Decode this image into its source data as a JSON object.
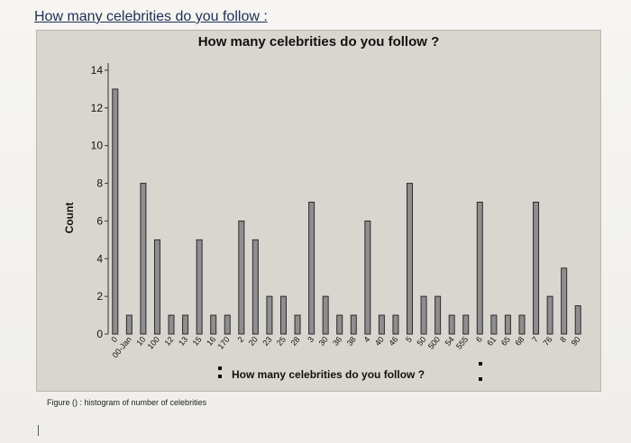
{
  "document": {
    "heading": "How many celebrities do you follow :",
    "caption": "Figure () : histogram of number of celebrities"
  },
  "colors": {
    "frame_bg": "#d9d6cf",
    "bar_fill": "#8e8e8e",
    "bar_stroke": "#2b2b2b",
    "axis": "#333333"
  },
  "chart_data": {
    "type": "bar",
    "title": "How many celebrities do you follow ?",
    "xlabel": "How many celebrities do you follow ?",
    "ylabel": "Count",
    "ylim": [
      0,
      14
    ],
    "yticks": [
      0,
      2,
      4,
      6,
      8,
      10,
      12,
      14
    ],
    "grid": false,
    "categories": [
      "0",
      "00-Jan",
      "10",
      "100",
      "12",
      "13",
      "15",
      "16",
      "170",
      "2",
      "20",
      "23",
      "25",
      "28",
      "3",
      "30",
      "36",
      "38",
      "4",
      "40",
      "46",
      "5",
      "50",
      "500",
      "54",
      "555",
      "6",
      "61",
      "65",
      "68",
      "7",
      "76",
      "8",
      "90"
    ],
    "values": [
      13,
      1,
      8,
      5,
      1,
      1,
      5,
      1,
      1,
      6,
      5,
      2,
      2,
      1,
      7,
      2,
      1,
      1,
      6,
      1,
      1,
      8,
      2,
      2,
      1,
      1,
      7,
      1,
      1,
      1,
      7,
      2,
      3.5,
      1.5
    ]
  }
}
